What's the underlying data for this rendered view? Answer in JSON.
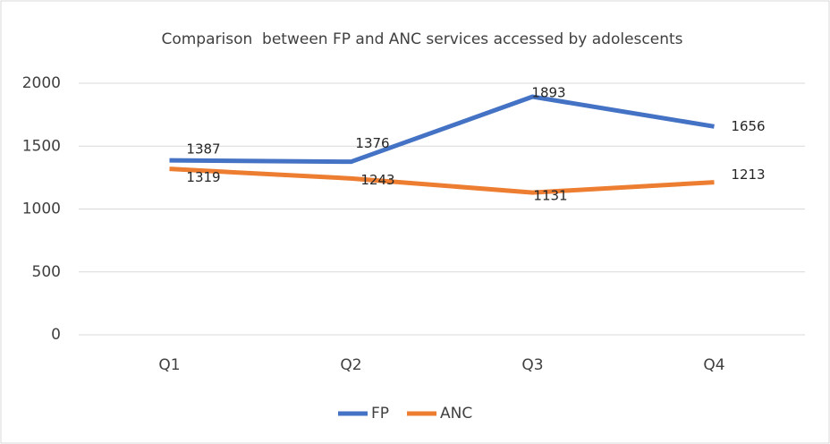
{
  "chart_data": {
    "type": "line",
    "title": "Comparison  between FP and ANC services accessed by adolescents",
    "categories": [
      "Q1",
      "Q2",
      "Q3",
      "Q4"
    ],
    "series": [
      {
        "name": "FP",
        "color": "#4472c4",
        "values": [
          1387,
          1376,
          1893,
          1656
        ]
      },
      {
        "name": "ANC",
        "color": "#ed7d31",
        "values": [
          1319,
          1243,
          1131,
          1213
        ]
      }
    ],
    "ylim": [
      0,
      2000
    ],
    "yticks": [
      0,
      500,
      1000,
      1500,
      2000
    ],
    "grid": true,
    "legend": "bottom"
  }
}
